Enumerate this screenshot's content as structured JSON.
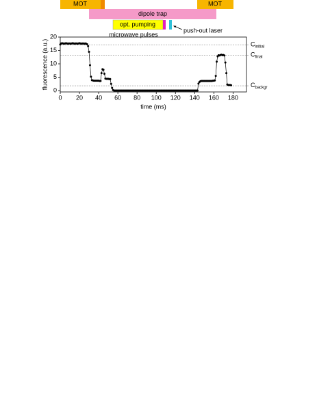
{
  "chart_data": {
    "type": "line",
    "xlabel": "time (ms)",
    "ylabel": "fluorescence (a.u.)",
    "color": "#000000",
    "xlim": [
      0,
      194
    ],
    "ylim": [
      -0.5,
      20
    ],
    "xticks": [
      0,
      20,
      40,
      60,
      80,
      100,
      120,
      140,
      160,
      180
    ],
    "yticks": [
      0,
      5,
      10,
      15,
      20
    ],
    "reference_lines": [
      {
        "value": 17,
        "label": "C",
        "sub": "initial"
      },
      {
        "value": 13.2,
        "label": "C",
        "sub": "final"
      },
      {
        "value": 1.8,
        "label": "C",
        "sub": "backgr"
      }
    ],
    "annotations": [
      "MOT",
      "dipole trap",
      "MOT",
      "opt. pumping",
      "microwave pulses",
      "push-out laser"
    ],
    "x": [
      0,
      1,
      2,
      3,
      4,
      5,
      6,
      7,
      8,
      9,
      10,
      11,
      12,
      13,
      14,
      15,
      16,
      17,
      18,
      19,
      20,
      21,
      22,
      23,
      24,
      25,
      26,
      27,
      28,
      29,
      30,
      31,
      32,
      33,
      34,
      35,
      36,
      37,
      38,
      39,
      40,
      41,
      42,
      43,
      44,
      45,
      46,
      47,
      48,
      49,
      50,
      51,
      52,
      53,
      54,
      55,
      56,
      57,
      58,
      59,
      60,
      61,
      62,
      63,
      64,
      65,
      66,
      67,
      68,
      69,
      70,
      71,
      72,
      73,
      74,
      75,
      76,
      77,
      78,
      79,
      80,
      81,
      82,
      83,
      84,
      85,
      86,
      87,
      88,
      89,
      90,
      91,
      92,
      93,
      94,
      95,
      96,
      97,
      98,
      99,
      100,
      101,
      102,
      103,
      104,
      105,
      106,
      107,
      108,
      109,
      110,
      111,
      112,
      113,
      114,
      115,
      116,
      117,
      118,
      119,
      120,
      121,
      122,
      123,
      124,
      125,
      126,
      127,
      128,
      129,
      130,
      131,
      132,
      133,
      134,
      135,
      136,
      137,
      138,
      139,
      140,
      141,
      142,
      143,
      144,
      145,
      146,
      147,
      148,
      149,
      150,
      151,
      152,
      153,
      154,
      155,
      156,
      157,
      158,
      159,
      160,
      161,
      162,
      163,
      164,
      165,
      166,
      167,
      168,
      169,
      170,
      171,
      172,
      173,
      174,
      175,
      176,
      177,
      178
    ],
    "values": [
      17.2,
      17.6,
      17.7,
      17.6,
      17.5,
      17.6,
      17.7,
      17.6,
      17.5,
      17.6,
      17.6,
      17.5,
      17.6,
      17.7,
      17.6,
      17.5,
      17.6,
      17.6,
      17.5,
      17.6,
      17.7,
      17.6,
      17.5,
      17.6,
      17.6,
      17.5,
      17.6,
      17.5,
      17.3,
      16.6,
      14.5,
      9.5,
      5.2,
      3.9,
      3.8,
      3.7,
      3.7,
      3.7,
      3.7,
      3.7,
      3.7,
      3.6,
      3.6,
      6.5,
      8.0,
      7.8,
      6.3,
      4.5,
      4.4,
      4.4,
      4.4,
      4.3,
      4.3,
      2.5,
      1.0,
      0.2,
      0,
      0,
      0,
      0,
      0,
      0,
      0,
      0,
      0,
      0,
      0,
      0,
      0,
      0,
      0,
      0,
      0,
      0,
      0,
      0,
      0,
      0,
      0,
      0,
      0,
      0,
      0,
      0,
      0,
      0,
      0,
      0,
      0,
      0,
      0,
      0,
      0,
      0,
      0,
      0,
      0,
      0,
      0,
      0,
      0,
      0,
      0,
      0,
      0,
      0,
      0,
      0,
      0,
      0,
      0,
      0,
      0,
      0,
      0,
      0,
      0,
      0,
      0,
      0,
      0,
      0,
      0,
      0,
      0,
      0,
      0,
      0,
      0,
      0,
      0,
      0,
      0,
      0,
      0,
      0,
      0,
      0,
      0,
      0,
      0,
      0,
      0,
      0,
      2.6,
      3.2,
      3.5,
      3.6,
      3.6,
      3.6,
      3.6,
      3.6,
      3.6,
      3.6,
      3.6,
      3.6,
      3.6,
      3.6,
      3.6,
      3.7,
      3.7,
      3.8,
      5.5,
      10.8,
      12.8,
      13.2,
      13.1,
      13.3,
      13.4,
      13.2,
      13.3,
      13.1,
      10.5,
      6.5,
      2.3,
      2.1,
      2.1,
      2.1,
      2.0
    ]
  }
}
